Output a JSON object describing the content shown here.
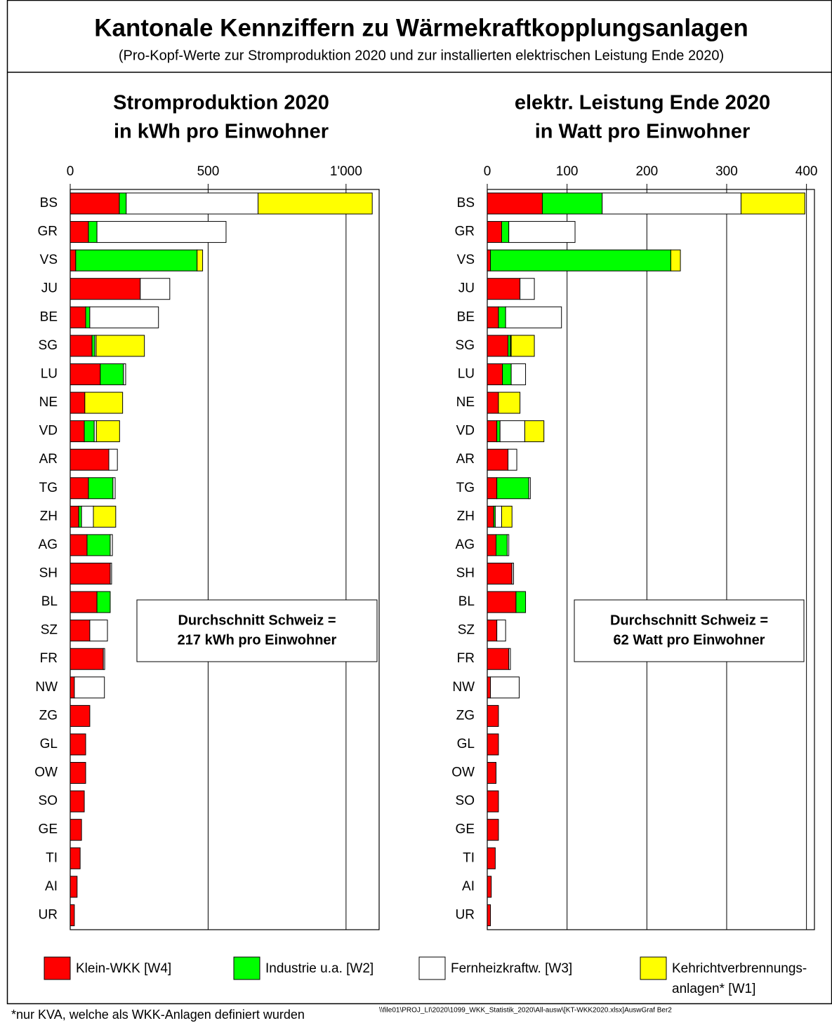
{
  "title": "Kantonale Kennziffern zu Wärmekraftkopplungsanlagen",
  "subtitle": "(Pro-Kopf-Werte zur Stromproduktion 2020 und zur installierten elektrischen Leistung Ende 2020)",
  "legend": [
    {
      "name": "Klein-WKK [W4]",
      "color": "#ff0000"
    },
    {
      "name": "Industrie u.a. [W2]",
      "color": "#00ff00"
    },
    {
      "name": "Fernheizkraftw. [W3]",
      "color": "#ffffff"
    },
    {
      "name": "Kehrichtverbrennungs-\nanlagen* [W1]",
      "color": "#ffff00"
    }
  ],
  "footnote": "*nur KVA, welche als WKK-Anlagen definiert wurden",
  "file_path": "\\\\file01\\PROJ_LI\\2020\\1099_WKK_Statistik_2020\\All-ausw\\[KT-WKK2020.xlsx]AuswGraf  Ber2",
  "chart_data": [
    {
      "type": "bar",
      "orientation": "horizontal",
      "stacked": true,
      "grid": true,
      "title": "Stromproduktion 2020",
      "subtitle": "in kWh pro Einwohner",
      "annotation": [
        "Durchschnitt Schweiz =",
        "217 kWh pro Einwohner"
      ],
      "categories": [
        "BS",
        "GR",
        "VS",
        "JU",
        "BE",
        "SG",
        "LU",
        "NE",
        "VD",
        "AR",
        "TG",
        "ZH",
        "AG",
        "SH",
        "BL",
        "SZ",
        "FR",
        "NW",
        "ZG",
        "GL",
        "OW",
        "SO",
        "GE",
        "TI",
        "AI",
        "UR"
      ],
      "xlim": [
        0,
        1120
      ],
      "xticks": [
        0,
        500,
        {
          "value": 1000,
          "label": "1'000"
        }
      ],
      "series": [
        {
          "values": [
            178,
            66,
            20,
            254,
            56,
            79,
            109,
            53,
            51,
            140,
            66,
            31,
            61,
            145,
            97,
            71,
            120,
            15,
            71,
            56,
            56,
            51,
            41,
            36,
            25,
            15
          ]
        },
        {
          "values": [
            25,
            31,
            440,
            0,
            15,
            10,
            84,
            0,
            36,
            0,
            89,
            10,
            84,
            0,
            48,
            0,
            0,
            0,
            0,
            0,
            0,
            0,
            0,
            0,
            0,
            0
          ]
        },
        {
          "values": [
            478,
            468,
            0,
            107,
            249,
            5,
            8,
            0,
            8,
            31,
            8,
            43,
            8,
            5,
            0,
            64,
            5,
            109,
            0,
            0,
            0,
            0,
            0,
            0,
            0,
            0
          ]
        },
        {
          "values": [
            414,
            0,
            20,
            0,
            0,
            175,
            0,
            137,
            84,
            0,
            0,
            81,
            0,
            0,
            0,
            0,
            0,
            0,
            0,
            0,
            0,
            0,
            0,
            0,
            0,
            0
          ]
        }
      ]
    },
    {
      "type": "bar",
      "orientation": "horizontal",
      "stacked": true,
      "grid": true,
      "title": "elektr. Leistung Ende 2020",
      "subtitle": "in Watt pro Einwohner",
      "annotation": [
        "Durchschnitt Schweiz =",
        "62 Watt pro Einwohner"
      ],
      "categories": [
        "BS",
        "GR",
        "VS",
        "JU",
        "BE",
        "SG",
        "LU",
        "NE",
        "VD",
        "AR",
        "TG",
        "ZH",
        "AG",
        "SH",
        "BL",
        "SZ",
        "FR",
        "NW",
        "ZG",
        "GL",
        "OW",
        "SO",
        "GE",
        "TI",
        "AI",
        "UR"
      ],
      "xlim": [
        0,
        410
      ],
      "xticks": [
        0,
        100,
        200,
        300,
        400
      ],
      "series": [
        {
          "values": [
            69,
            18,
            4,
            41,
            14,
            26,
            19,
            14,
            12,
            26,
            12,
            8,
            11,
            31,
            36,
            12,
            27,
            4,
            14,
            14,
            11,
            14,
            14,
            10,
            5,
            4
          ]
        },
        {
          "values": [
            75,
            9,
            226,
            0,
            9,
            3,
            11,
            0,
            4,
            0,
            40,
            2,
            14,
            0,
            12,
            0,
            0,
            0,
            0,
            0,
            0,
            0,
            0,
            0,
            0,
            0
          ]
        },
        {
          "values": [
            174,
            83,
            0,
            18,
            70,
            1,
            18,
            0,
            31,
            11,
            2,
            8,
            2,
            2,
            0,
            11,
            2,
            36,
            0,
            0,
            0,
            0,
            0,
            0,
            0,
            0
          ]
        },
        {
          "values": [
            80,
            0,
            12,
            0,
            0,
            29,
            0,
            27,
            24,
            0,
            0,
            13,
            0,
            0,
            0,
            0,
            0,
            0,
            0,
            0,
            0,
            0,
            0,
            0,
            0,
            0
          ]
        }
      ]
    }
  ]
}
